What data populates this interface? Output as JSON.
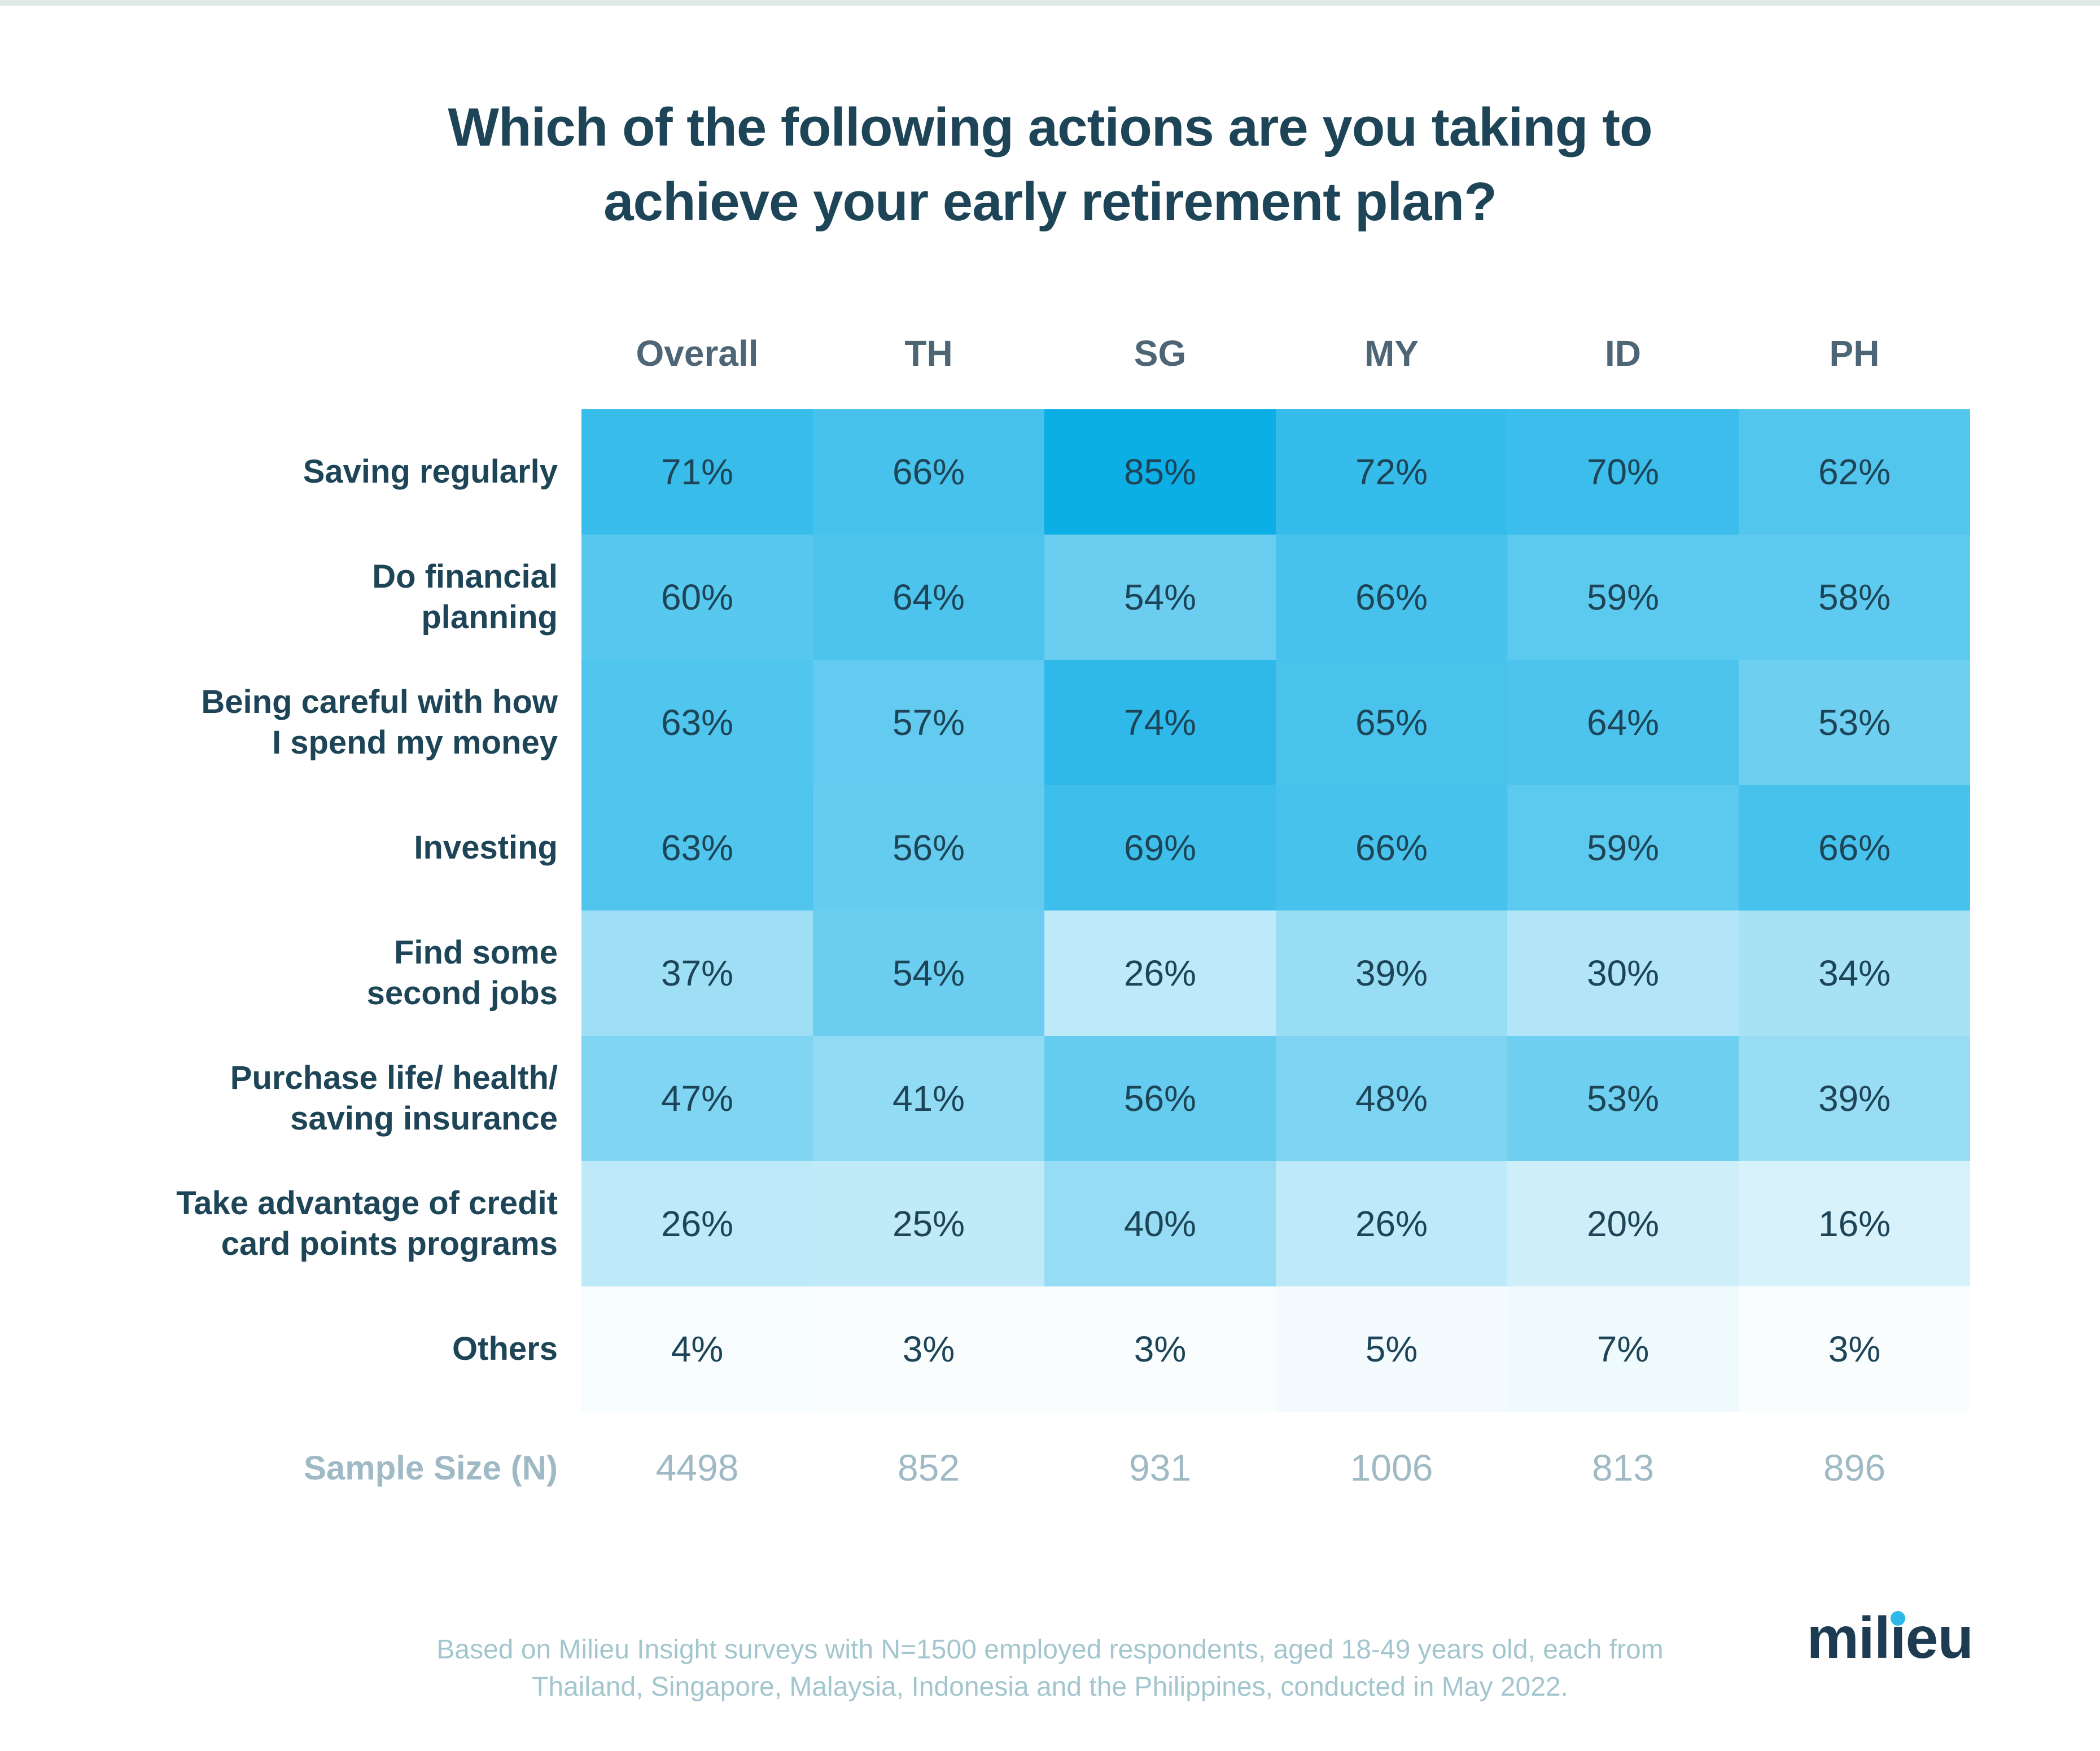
{
  "page": {
    "top_strip_color": "#dce9e4",
    "background_color": "#ffffff"
  },
  "colors": {
    "ink": "#1d4557",
    "header-color": "#4d6575",
    "muted": "#a0bac5",
    "footer-color": "#a3c6ce",
    "logo-color": "#1e3c51",
    "dot-color": "#2cb9ea",
    "strip-color": "#dce9e4"
  },
  "title": {
    "lines": [
      "Which of the following actions are you taking to",
      "achieve your early retirement plan?"
    ]
  },
  "chart_data": {
    "type": "heatmap",
    "title": "Which of the following actions are you taking to achieve your early retirement plan?",
    "columns": [
      "Overall",
      "TH",
      "SG",
      "MY",
      "ID",
      "PH"
    ],
    "rows": [
      {
        "label": "Saving regularly",
        "values": [
          71,
          66,
          85,
          72,
          70,
          62
        ]
      },
      {
        "label": "Do financial\nplanning",
        "values": [
          60,
          64,
          54,
          66,
          59,
          58
        ]
      },
      {
        "label": "Being careful with how\nI spend my money",
        "values": [
          63,
          57,
          74,
          65,
          64,
          53
        ]
      },
      {
        "label": "Investing",
        "values": [
          63,
          56,
          69,
          66,
          59,
          66
        ]
      },
      {
        "label": "Find some\nsecond jobs",
        "values": [
          37,
          54,
          26,
          39,
          30,
          34
        ]
      },
      {
        "label": "Purchase life/ health/\nsaving insurance",
        "values": [
          47,
          41,
          56,
          48,
          53,
          39
        ]
      },
      {
        "label": "Take advantage of credit\ncard points programs",
        "values": [
          26,
          25,
          40,
          26,
          20,
          16
        ]
      },
      {
        "label": "Others",
        "values": [
          4,
          3,
          3,
          5,
          7,
          3
        ]
      }
    ],
    "value_suffix": "%",
    "sample_size": {
      "label": "Sample Size (N)",
      "values": [
        "4498",
        "852",
        "931",
        "1006",
        "813",
        "896"
      ]
    },
    "color_scale": {
      "min_color": "#ffffff",
      "max_color": "#0caee6",
      "max_value": 85,
      "gamma": 1.1
    },
    "legend_position": "none",
    "grid": false
  },
  "footer": {
    "lines": [
      "Based on Milieu Insight surveys with N=1500 employed respondents, aged 18-49 years old, each from",
      "Thailand, Singapore, Malaysia, Indonesia and the Philippines, conducted in May 2022."
    ]
  },
  "logo": {
    "text": "milieu",
    "pre": "mil",
    "accent_glyph": "ı",
    "post": "eu",
    "dot_color": "#2cb9ea"
  }
}
